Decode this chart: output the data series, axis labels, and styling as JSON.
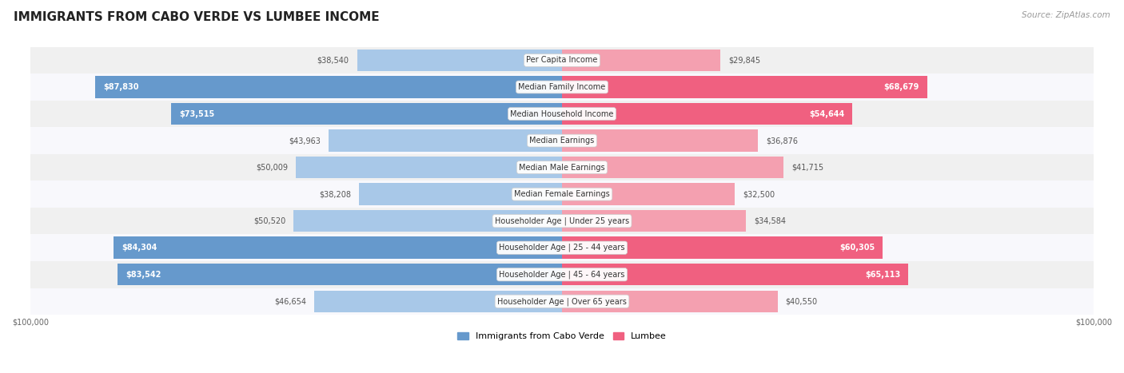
{
  "title": "IMMIGRANTS FROM CABO VERDE VS LUMBEE INCOME",
  "source": "Source: ZipAtlas.com",
  "categories": [
    "Per Capita Income",
    "Median Family Income",
    "Median Household Income",
    "Median Earnings",
    "Median Male Earnings",
    "Median Female Earnings",
    "Householder Age | Under 25 years",
    "Householder Age | 25 - 44 years",
    "Householder Age | 45 - 64 years",
    "Householder Age | Over 65 years"
  ],
  "cabo_verde": [
    38540,
    87830,
    73515,
    43963,
    50009,
    38208,
    50520,
    84304,
    83542,
    46654
  ],
  "lumbee": [
    29845,
    68679,
    54644,
    36876,
    41715,
    32500,
    34584,
    60305,
    65113,
    40550
  ],
  "cabo_verde_color_light": "#a8c8e8",
  "cabo_verde_color_dark": "#6699cc",
  "lumbee_color_light": "#f4a0b0",
  "lumbee_color_dark": "#f06080",
  "cabo_verde_label": "Immigrants from Cabo Verde",
  "lumbee_label": "Lumbee",
  "x_max": 100000,
  "bg_color": "#ffffff",
  "row_bg_light": "#f0f0f0",
  "row_bg_dark": "#e0e0e8",
  "title_fontsize": 11,
  "source_fontsize": 7.5,
  "label_fontsize": 7,
  "value_fontsize": 7,
  "legend_fontsize": 8,
  "cabo_inside_threshold": 62000,
  "lumbee_inside_threshold": 52000
}
